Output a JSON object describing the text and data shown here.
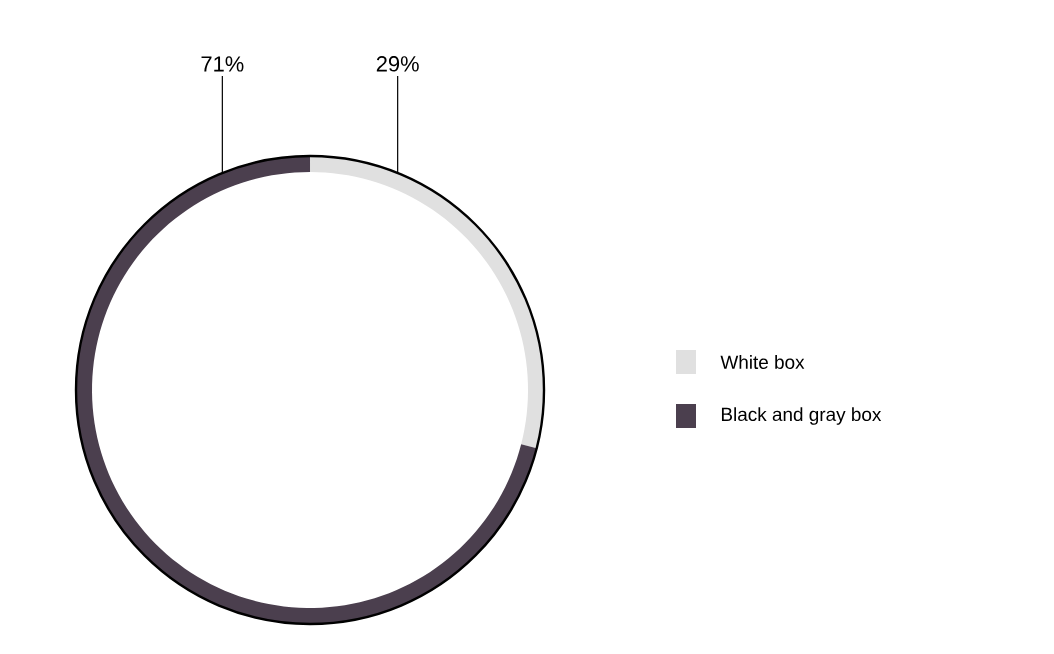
{
  "chart_data": {
    "type": "donut",
    "categories": [
      "White box",
      "Black and gray box"
    ],
    "values": [
      29,
      71
    ],
    "colors": [
      "#e0e0e0",
      "#4b3f4e"
    ],
    "value_labels": [
      "29%",
      "71%"
    ],
    "legend": "right"
  }
}
